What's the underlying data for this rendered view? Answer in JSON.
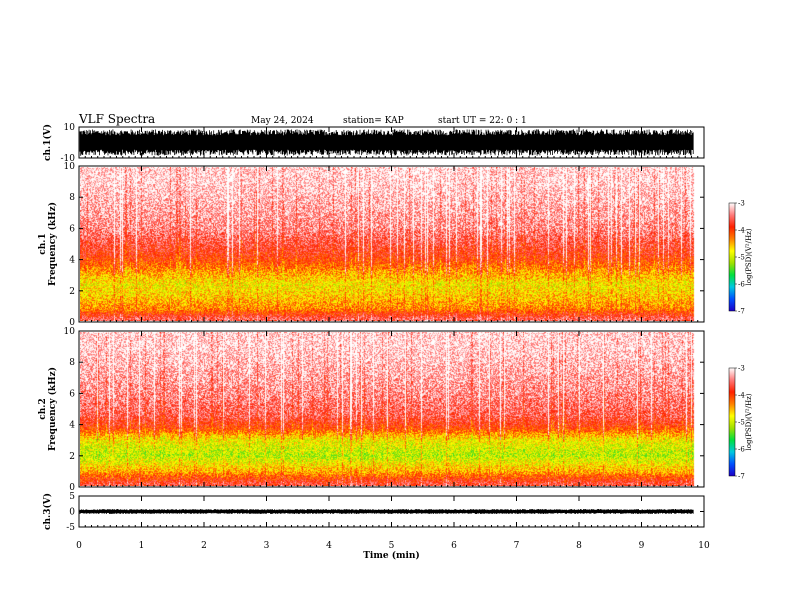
{
  "header": {
    "title": "VLF Spectra",
    "date": "May 24, 2024",
    "station": "station= KAP",
    "start": "start UT =  22: 0  : 1"
  },
  "colors": {
    "colormap": [
      "#1d00c8",
      "#0050ff",
      "#00c8e0",
      "#00e040",
      "#a0e000",
      "#ffff00",
      "#ff8000",
      "#ff2000",
      "#ff7a7a",
      "#ffffff"
    ],
    "waveform": "#000000"
  },
  "chart_data": [
    {
      "type": "line",
      "panel": "ch1-waveform",
      "ylabel": "ch.1(V)",
      "ylim": [
        -10,
        10
      ],
      "yticks": [
        "10",
        "-10"
      ],
      "series": [
        {
          "envelope_min": -8.5,
          "envelope_max": 8.5
        }
      ],
      "x_extent_min": [
        0,
        9.83
      ]
    },
    {
      "type": "heatmap",
      "panel": "ch1-spectrogram",
      "ylabel": "ch.1\nFrequency (kHz)",
      "ylim": [
        0,
        10
      ],
      "yticks": [
        "0",
        "2",
        "4",
        "6",
        "8",
        "10"
      ],
      "band_profile": [
        {
          "f": 0.2,
          "v": -3.6
        },
        {
          "f": 0.8,
          "v": -4.3
        },
        {
          "f": 1.6,
          "v": -4.6
        },
        {
          "f": 2.4,
          "v": -4.8
        },
        {
          "f": 3.2,
          "v": -4.4
        },
        {
          "f": 4.2,
          "v": -3.9
        },
        {
          "f": 6.0,
          "v": -3.4
        },
        {
          "f": 9.0,
          "v": -3.1
        }
      ],
      "colorbar": {
        "label": "log(PSD)(V²/Hz)",
        "range": [
          -7,
          -3
        ],
        "ticks": [
          "-3",
          "-4",
          "-5",
          "-6",
          "-7"
        ]
      }
    },
    {
      "type": "heatmap",
      "panel": "ch2-spectrogram",
      "ylabel": "ch.2\nFrequency (kHz)",
      "ylim": [
        0,
        10
      ],
      "yticks": [
        "0",
        "2",
        "4",
        "6",
        "8",
        "10"
      ],
      "band_profile": [
        {
          "f": 0.2,
          "v": -3.7
        },
        {
          "f": 1.0,
          "v": -4.5
        },
        {
          "f": 2.0,
          "v": -5.1
        },
        {
          "f": 3.0,
          "v": -4.8
        },
        {
          "f": 3.8,
          "v": -4.0
        },
        {
          "f": 4.6,
          "v": -3.6
        },
        {
          "f": 6.0,
          "v": -3.4
        },
        {
          "f": 9.0,
          "v": -3.1
        }
      ],
      "colorbar": {
        "label": "log(PSD)(V²/Hz)",
        "range": [
          -7,
          -3
        ],
        "ticks": [
          "-3",
          "-4",
          "-5",
          "-6",
          "-7"
        ]
      }
    },
    {
      "type": "line",
      "panel": "ch3-waveform",
      "ylabel": "ch.3(V)",
      "ylim": [
        -5,
        5
      ],
      "yticks": [
        "5",
        "0",
        "-5"
      ],
      "series": [
        {
          "envelope_min": -0.8,
          "envelope_max": 0.8
        }
      ],
      "x_extent_min": [
        0,
        9.83
      ]
    }
  ],
  "xaxis": {
    "label": "Time (min)",
    "range": [
      0,
      10
    ],
    "ticks": [
      "0",
      "1",
      "2",
      "3",
      "4",
      "5",
      "6",
      "7",
      "8",
      "9",
      "10"
    ]
  }
}
